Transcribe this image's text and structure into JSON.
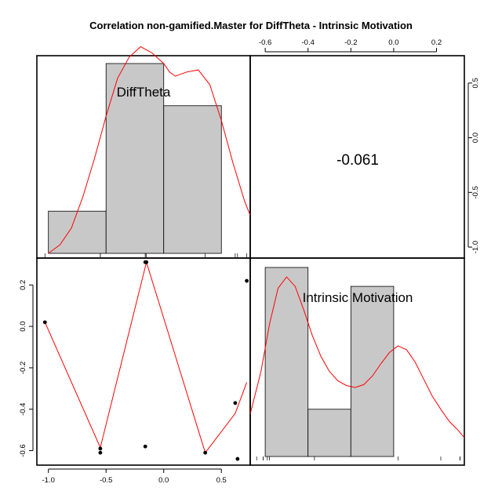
{
  "chart_data": {
    "type": "scatter",
    "title": "Correlation non-gamified.Master for DiffTheta - Intrinsic Motivation",
    "variables": [
      "DiffTheta",
      "Intrinsic Motivation"
    ],
    "correlation": "-0.061",
    "diffTheta_axis": {
      "range": [
        -1.1,
        0.75
      ],
      "ticks": [
        -1.0,
        -0.5,
        0.0,
        0.5
      ],
      "tick_labels": [
        "-1.0",
        "-0.5",
        "0.0",
        "0.5"
      ]
    },
    "im_axis": {
      "range": [
        -0.67,
        0.33
      ],
      "ticks": [
        -0.6,
        -0.4,
        -0.2,
        0.0,
        0.2
      ],
      "tick_labels": [
        "-0.6",
        "-0.4",
        "-0.2",
        "0.0",
        "0.2"
      ]
    },
    "top_axis_tick_labels": [
      "-0.6",
      "-0.4",
      "-0.2",
      "0.0",
      "0.2"
    ],
    "right_axis_tick_labels": [
      "0.5",
      "0.0",
      "-0.5",
      "-1.0"
    ],
    "points": [
      {
        "x": -1.03,
        "y": 0.02
      },
      {
        "x": -0.55,
        "y": -0.59
      },
      {
        "x": -0.55,
        "y": -0.61
      },
      {
        "x": -0.16,
        "y": 0.31
      },
      {
        "x": -0.15,
        "y": 0.31
      },
      {
        "x": -0.16,
        "y": -0.58
      },
      {
        "x": 0.36,
        "y": -0.61
      },
      {
        "x": 0.62,
        "y": -0.37
      },
      {
        "x": 0.64,
        "y": -0.64
      },
      {
        "x": 0.72,
        "y": 0.22
      }
    ],
    "smoother_line": [
      {
        "x": -1.03,
        "y": 0.02
      },
      {
        "x": -0.55,
        "y": -0.585
      },
      {
        "x": -0.15,
        "y": 0.31
      },
      {
        "x": 0.36,
        "y": -0.61
      },
      {
        "x": 0.62,
        "y": -0.42
      },
      {
        "x": 0.72,
        "y": -0.27
      }
    ],
    "diffTheta_histogram": {
      "bins": [
        [
          -1.0,
          -0.5
        ],
        [
          -0.5,
          0.0
        ],
        [
          0.0,
          0.5
        ]
      ],
      "density": [
        0.2,
        0.9,
        0.7
      ]
    },
    "im_histogram": {
      "bins": [
        [
          -0.6,
          -0.4
        ],
        [
          -0.4,
          -0.2
        ],
        [
          -0.2,
          0.0
        ]
      ],
      "density": [
        2.0,
        0.5,
        1.8
      ]
    }
  }
}
